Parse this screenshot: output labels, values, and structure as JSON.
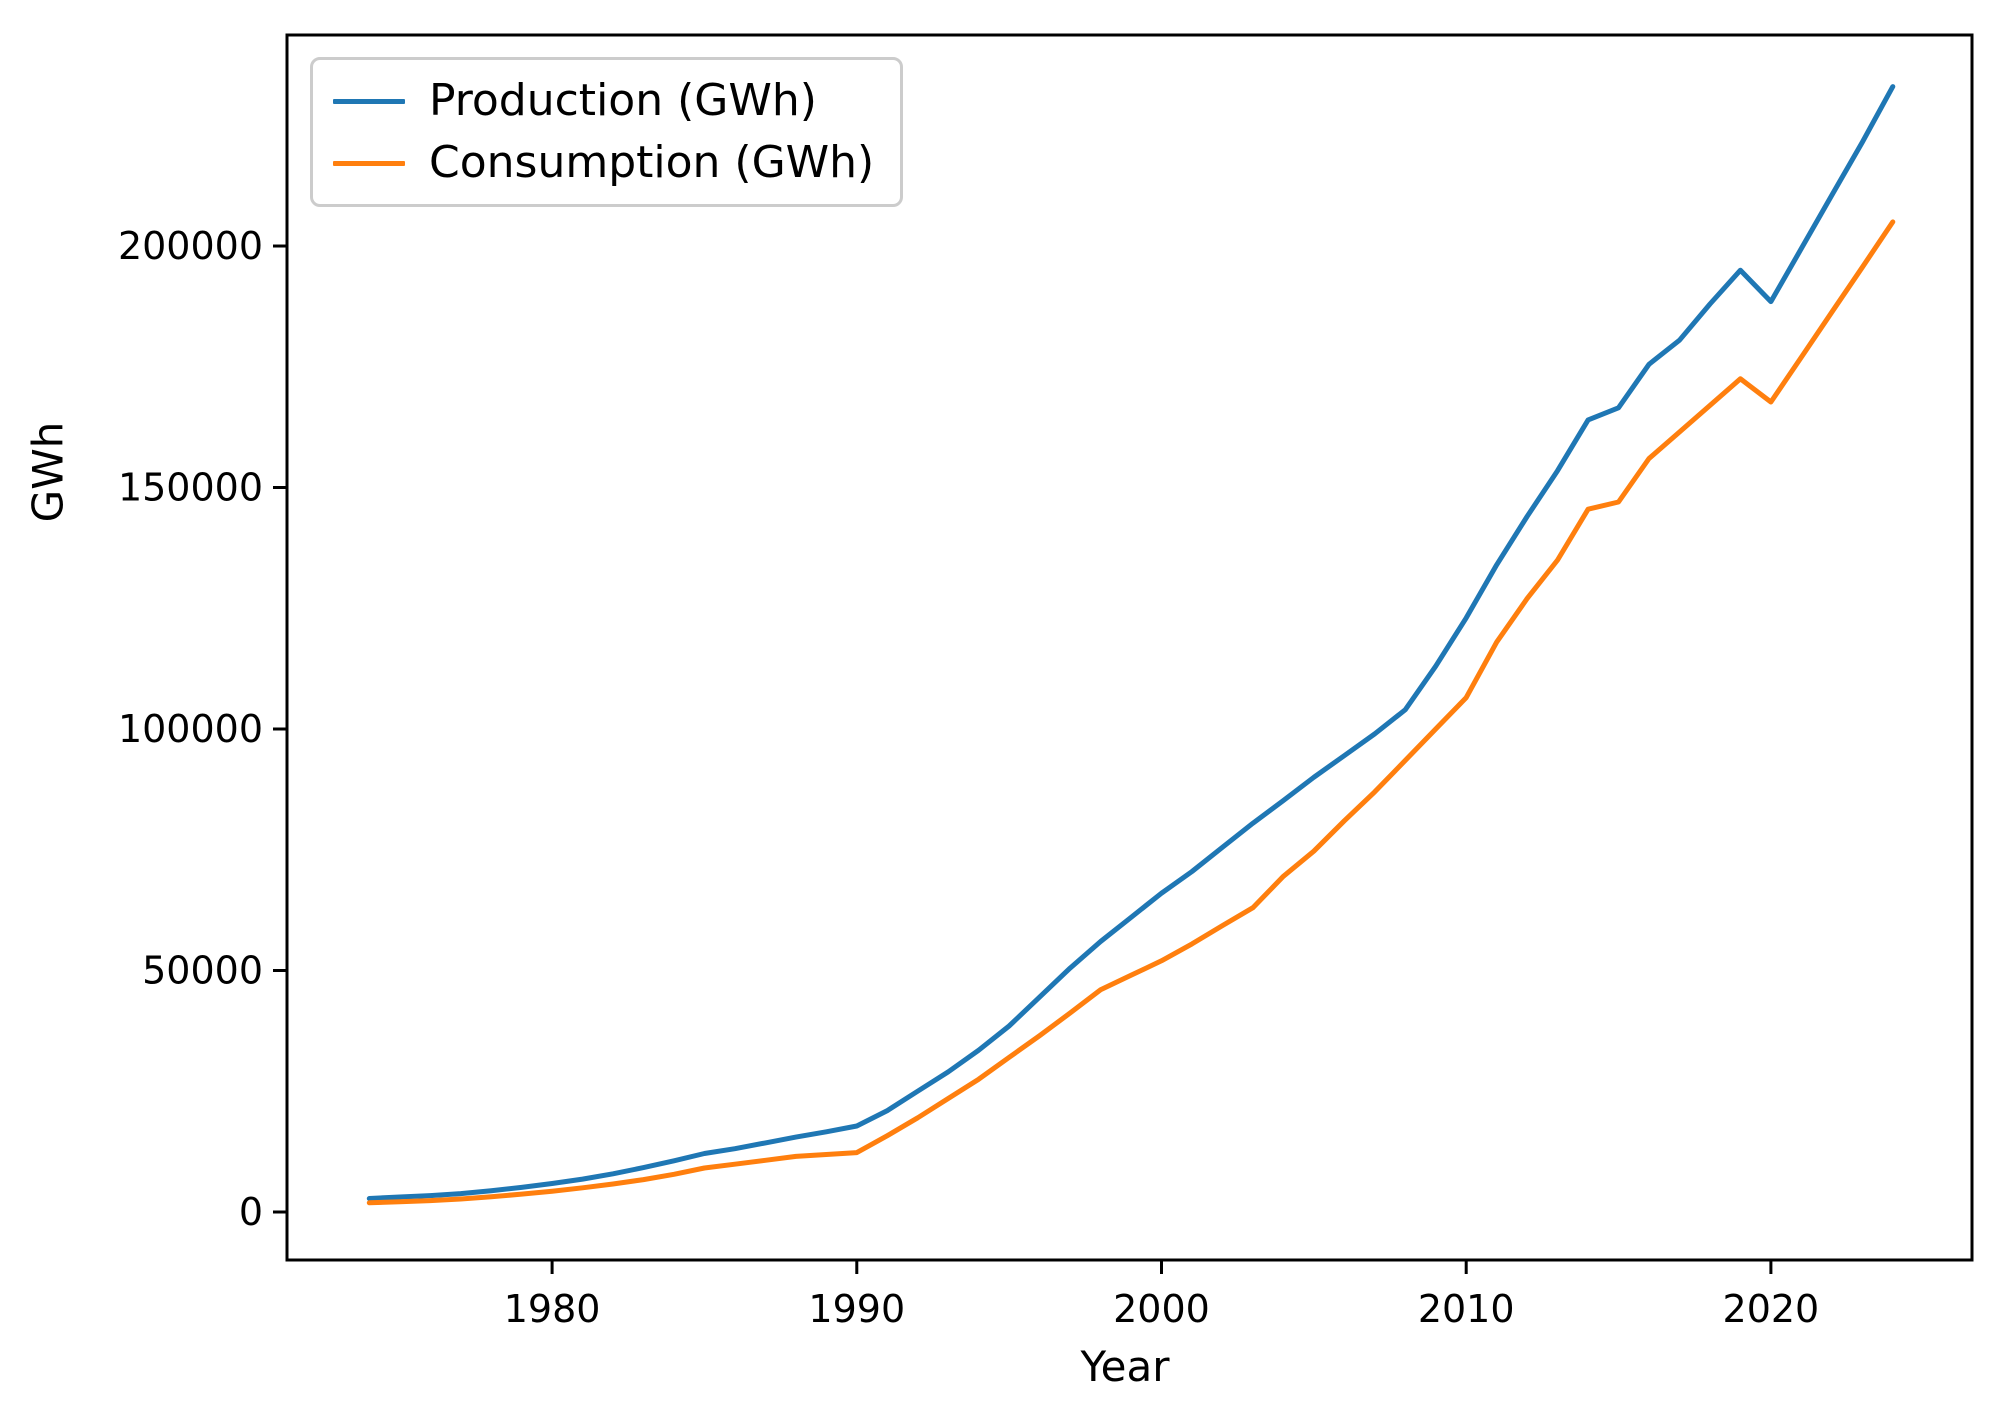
{
  "chart_data": {
    "type": "line",
    "title": "",
    "xlabel": "Year",
    "ylabel": "GWh",
    "legend_position": "upper left",
    "grid": false,
    "xlim": [
      1971.3,
      2026.6
    ],
    "ylim": [
      -9940,
      243690
    ],
    "x_ticks": [
      1980,
      1990,
      2000,
      2010,
      2020
    ],
    "y_ticks": [
      0,
      50000,
      100000,
      150000,
      200000
    ],
    "x": [
      1974,
      1975,
      1976,
      1977,
      1978,
      1979,
      1980,
      1981,
      1982,
      1983,
      1984,
      1985,
      1986,
      1987,
      1988,
      1989,
      1990,
      1991,
      1992,
      1993,
      1994,
      1995,
      1996,
      1997,
      1998,
      1999,
      2000,
      2001,
      2002,
      2003,
      2004,
      2005,
      2006,
      2007,
      2008,
      2009,
      2010,
      2011,
      2012,
      2013,
      2014,
      2015,
      2016,
      2017,
      2018,
      2019,
      2020,
      2021,
      2022,
      2023,
      2024
    ],
    "series": [
      {
        "name": "Production (GWh)",
        "color": "#1f77b4",
        "values": [
          2800,
          3100,
          3400,
          3800,
          4400,
          5100,
          5900,
          6800,
          7900,
          9200,
          10600,
          12100,
          13100,
          14300,
          15500,
          16600,
          17800,
          21000,
          25000,
          29000,
          33500,
          38500,
          44500,
          50500,
          56000,
          61000,
          66000,
          70500,
          75500,
          80500,
          85200,
          90000,
          94500,
          99000,
          104000,
          113000,
          123000,
          134000,
          144000,
          153500,
          164000,
          166500,
          175500,
          180500,
          188000,
          195000,
          188500,
          199500,
          210500,
          221500,
          233000
        ]
      },
      {
        "name": "Consumption (GWh)",
        "color": "#ff7f0e",
        "values": [
          1900,
          2100,
          2350,
          2700,
          3150,
          3700,
          4300,
          5000,
          5800,
          6700,
          7800,
          9100,
          9900,
          10700,
          11500,
          11900,
          12300,
          15800,
          19500,
          23500,
          27500,
          32000,
          36500,
          41200,
          46000,
          49000,
          52000,
          55500,
          59300,
          63000,
          69500,
          74700,
          81000,
          87000,
          93500,
          100000,
          106500,
          118000,
          127000,
          135000,
          145500,
          147000,
          156000,
          161500,
          167000,
          172500,
          167700,
          177000,
          186300,
          195600,
          205000
        ]
      }
    ]
  }
}
